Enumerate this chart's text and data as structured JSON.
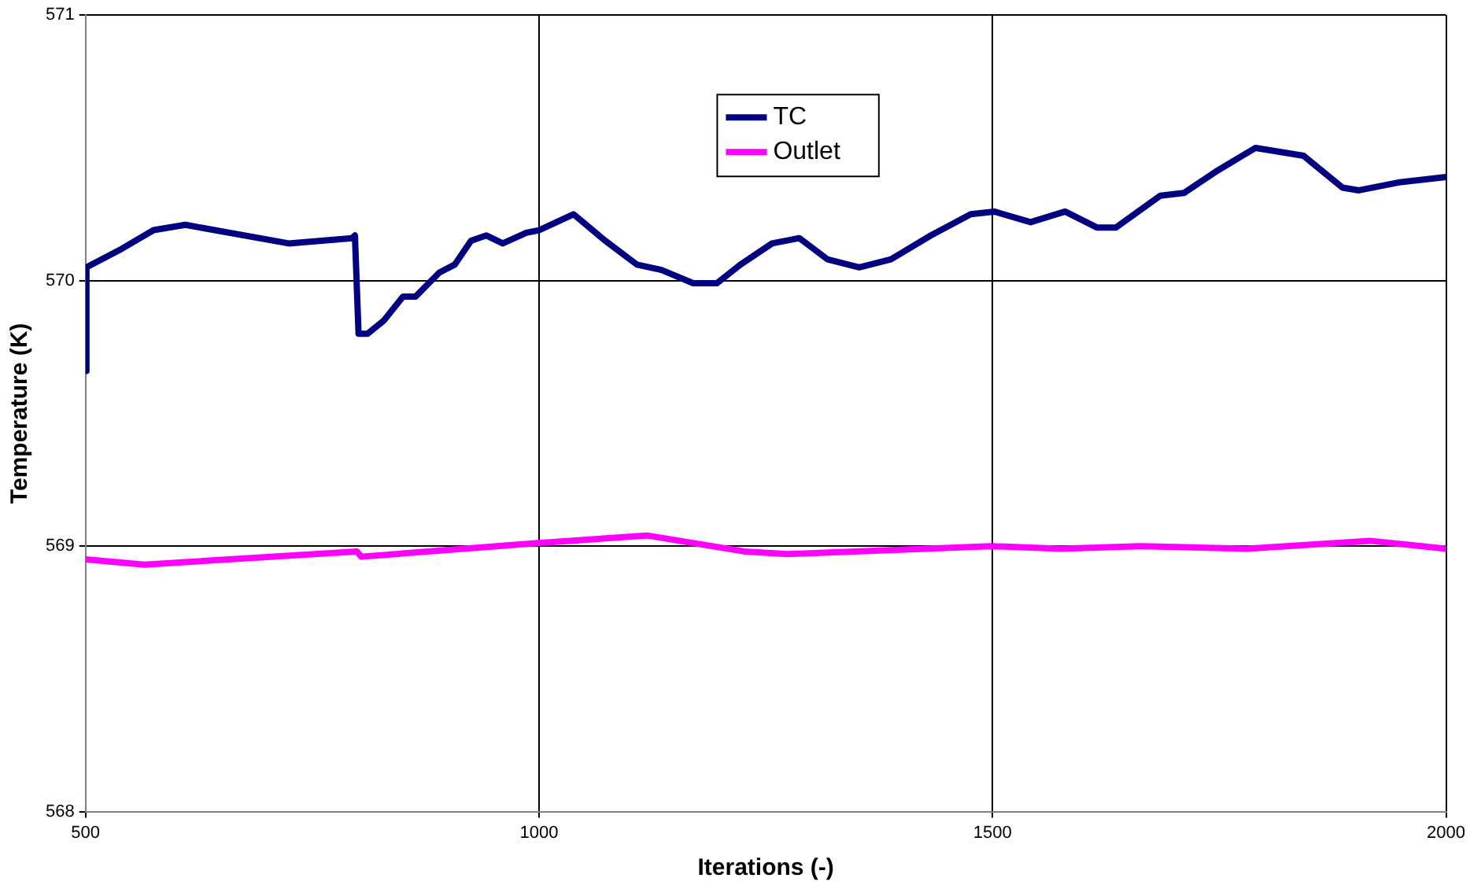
{
  "chart_data": {
    "type": "line",
    "xlabel": "Iterations (-)",
    "ylabel": "Temperature (K)",
    "xlim": [
      500,
      2000
    ],
    "xticks": [
      500,
      1000,
      1500,
      2000
    ],
    "ylim": [
      568,
      571
    ],
    "yticks": [
      568,
      569,
      570,
      571
    ],
    "grid": true,
    "legend": "top",
    "marker": "none",
    "line_style": "solid",
    "series": [
      {
        "name": "TC",
        "color": "#000080",
        "x": [
          500,
          501,
          540,
          575,
          610,
          724,
          794,
          797,
          801,
          811,
          829,
          850,
          864,
          890,
          907,
          925,
          942,
          960,
          986,
          1000,
          1038,
          1073,
          1108,
          1135,
          1170,
          1196,
          1222,
          1257,
          1287,
          1318,
          1353,
          1388,
          1432,
          1476,
          1502,
          1542,
          1580,
          1615,
          1636,
          1685,
          1711,
          1746,
          1790,
          1843,
          1886,
          1904,
          1948,
          2000
        ],
        "values": [
          569.66,
          570.05,
          570.12,
          570.19,
          570.21,
          570.14,
          570.16,
          570.17,
          569.8,
          569.8,
          569.85,
          569.94,
          569.94,
          570.03,
          570.06,
          570.15,
          570.17,
          570.14,
          570.18,
          570.19,
          570.25,
          570.15,
          570.06,
          570.04,
          569.99,
          569.99,
          570.06,
          570.14,
          570.16,
          570.08,
          570.05,
          570.08,
          570.17,
          570.25,
          570.26,
          570.22,
          570.26,
          570.2,
          570.2,
          570.32,
          570.33,
          570.41,
          570.5,
          570.47,
          570.35,
          570.34,
          570.37,
          570.39
        ]
      },
      {
        "name": "Outlet",
        "color": "#ff00ff",
        "x": [
          500,
          565,
          799,
          804,
          993,
          1119,
          1226,
          1274,
          1498,
          1575,
          1663,
          1780,
          1916,
          2000
        ],
        "values": [
          568.95,
          568.93,
          568.98,
          568.96,
          569.01,
          569.04,
          568.98,
          568.97,
          569.0,
          568.99,
          569.0,
          568.99,
          569.02,
          568.99
        ]
      }
    ]
  }
}
